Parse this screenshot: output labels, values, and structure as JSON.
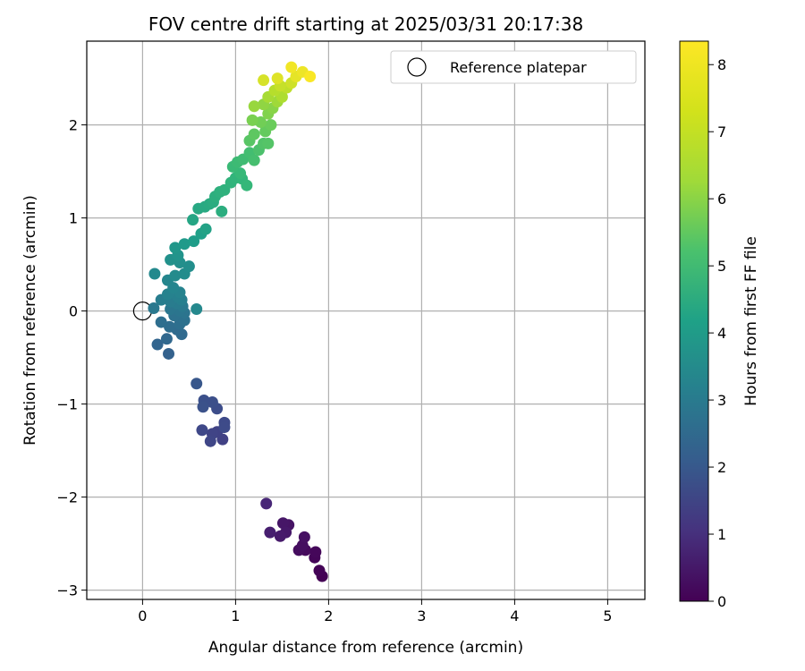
{
  "chart_data": {
    "type": "scatter",
    "title": "FOV centre drift starting at 2025/03/31 20:17:38",
    "xlabel": "Angular distance from reference (arcmin)",
    "ylabel": "Rotation from reference (arcmin)",
    "xlim": [
      -0.6,
      5.4
    ],
    "ylim": [
      -3.1,
      2.9
    ],
    "xticks": [
      0,
      1,
      2,
      3,
      4,
      5
    ],
    "yticks": [
      -3,
      -2,
      -1,
      0,
      1,
      2
    ],
    "xtick_labels": [
      "0",
      "1",
      "2",
      "3",
      "4",
      "5"
    ],
    "ytick_labels": [
      "−3",
      "−2",
      "−1",
      "0",
      "1",
      "2"
    ],
    "grid": true,
    "legend": {
      "placement": "top-right",
      "entries": [
        "Reference platepar"
      ]
    },
    "colormap": "viridis",
    "colorbar": {
      "label": "Hours from first FF file",
      "range": [
        0,
        8.35
      ],
      "ticks": [
        0,
        1,
        2,
        3,
        4,
        5,
        6,
        7,
        8
      ],
      "tick_labels": [
        "0",
        "1",
        "2",
        "3",
        "4",
        "5",
        "6",
        "7",
        "8"
      ]
    },
    "reference_point": {
      "x": 0,
      "y": 0
    },
    "points": [
      {
        "x": 1.93,
        "y": -2.85,
        "h": 0.0
      },
      {
        "x": 1.9,
        "y": -2.79,
        "h": 0.05
      },
      {
        "x": 1.85,
        "y": -2.65,
        "h": 0.1
      },
      {
        "x": 1.86,
        "y": -2.59,
        "h": 0.15
      },
      {
        "x": 1.75,
        "y": -2.57,
        "h": 0.2
      },
      {
        "x": 1.68,
        "y": -2.57,
        "h": 0.25
      },
      {
        "x": 1.72,
        "y": -2.52,
        "h": 0.3
      },
      {
        "x": 1.74,
        "y": -2.43,
        "h": 0.35
      },
      {
        "x": 1.57,
        "y": -2.3,
        "h": 0.45
      },
      {
        "x": 1.51,
        "y": -2.28,
        "h": 0.5
      },
      {
        "x": 1.54,
        "y": -2.38,
        "h": 0.55
      },
      {
        "x": 1.48,
        "y": -2.42,
        "h": 0.6
      },
      {
        "x": 1.37,
        "y": -2.38,
        "h": 0.7
      },
      {
        "x": 1.33,
        "y": -2.07,
        "h": 0.9
      },
      {
        "x": 0.86,
        "y": -1.38,
        "h": 1.6
      },
      {
        "x": 0.8,
        "y": -1.3,
        "h": 1.65
      },
      {
        "x": 0.75,
        "y": -1.32,
        "h": 1.7
      },
      {
        "x": 0.73,
        "y": -1.4,
        "h": 1.75
      },
      {
        "x": 0.64,
        "y": -1.28,
        "h": 1.8
      },
      {
        "x": 0.88,
        "y": -1.2,
        "h": 1.85
      },
      {
        "x": 0.88,
        "y": -1.25,
        "h": 1.88
      },
      {
        "x": 0.8,
        "y": -1.05,
        "h": 1.95
      },
      {
        "x": 0.75,
        "y": -0.98,
        "h": 2.0
      },
      {
        "x": 0.66,
        "y": -0.96,
        "h": 2.05
      },
      {
        "x": 0.65,
        "y": -1.03,
        "h": 2.1
      },
      {
        "x": 0.58,
        "y": -0.78,
        "h": 2.25
      },
      {
        "x": 0.28,
        "y": -0.46,
        "h": 2.6
      },
      {
        "x": 0.16,
        "y": -0.36,
        "h": 2.7
      },
      {
        "x": 0.26,
        "y": -0.3,
        "h": 2.8
      },
      {
        "x": 0.42,
        "y": -0.25,
        "h": 2.85
      },
      {
        "x": 0.37,
        "y": -0.2,
        "h": 2.9
      },
      {
        "x": 0.29,
        "y": -0.17,
        "h": 2.95
      },
      {
        "x": 0.2,
        "y": -0.12,
        "h": 3.0
      },
      {
        "x": 0.4,
        "y": -0.14,
        "h": 3.05
      },
      {
        "x": 0.45,
        "y": -0.1,
        "h": 3.1
      },
      {
        "x": 0.34,
        "y": -0.05,
        "h": 3.15
      },
      {
        "x": 0.45,
        "y": -0.02,
        "h": 3.2
      },
      {
        "x": 0.4,
        "y": 0.0,
        "h": 3.25
      },
      {
        "x": 0.3,
        "y": 0.02,
        "h": 3.3
      },
      {
        "x": 0.12,
        "y": 0.03,
        "h": 3.35
      },
      {
        "x": 0.43,
        "y": 0.05,
        "h": 3.4
      },
      {
        "x": 0.37,
        "y": 0.08,
        "h": 3.45
      },
      {
        "x": 0.3,
        "y": 0.1,
        "h": 3.5
      },
      {
        "x": 0.2,
        "y": 0.12,
        "h": 3.55
      },
      {
        "x": 0.42,
        "y": 0.12,
        "h": 3.6
      },
      {
        "x": 0.38,
        "y": 0.15,
        "h": 3.65
      },
      {
        "x": 0.27,
        "y": 0.18,
        "h": 3.7
      },
      {
        "x": 0.4,
        "y": 0.2,
        "h": 3.75
      },
      {
        "x": 0.33,
        "y": 0.25,
        "h": 3.8
      },
      {
        "x": 0.27,
        "y": 0.33,
        "h": 3.85
      },
      {
        "x": 0.58,
        "y": 0.02,
        "h": 3.9
      },
      {
        "x": 0.13,
        "y": 0.4,
        "h": 3.95
      },
      {
        "x": 0.35,
        "y": 0.38,
        "h": 4.0
      },
      {
        "x": 0.45,
        "y": 0.4,
        "h": 4.05
      },
      {
        "x": 0.5,
        "y": 0.48,
        "h": 4.1
      },
      {
        "x": 0.4,
        "y": 0.52,
        "h": 4.15
      },
      {
        "x": 0.3,
        "y": 0.55,
        "h": 4.2
      },
      {
        "x": 0.38,
        "y": 0.6,
        "h": 4.3
      },
      {
        "x": 0.35,
        "y": 0.68,
        "h": 4.4
      },
      {
        "x": 0.45,
        "y": 0.72,
        "h": 4.5
      },
      {
        "x": 0.55,
        "y": 0.75,
        "h": 4.6
      },
      {
        "x": 0.63,
        "y": 0.83,
        "h": 4.7
      },
      {
        "x": 0.68,
        "y": 0.88,
        "h": 4.8
      },
      {
        "x": 0.54,
        "y": 0.98,
        "h": 4.9
      },
      {
        "x": 0.6,
        "y": 1.1,
        "h": 5.0
      },
      {
        "x": 0.67,
        "y": 1.12,
        "h": 5.05
      },
      {
        "x": 0.72,
        "y": 1.15,
        "h": 5.1
      },
      {
        "x": 0.76,
        "y": 1.17,
        "h": 5.15
      },
      {
        "x": 0.85,
        "y": 1.07,
        "h": 5.2
      },
      {
        "x": 0.78,
        "y": 1.23,
        "h": 5.25
      },
      {
        "x": 0.83,
        "y": 1.28,
        "h": 5.3
      },
      {
        "x": 0.88,
        "y": 1.3,
        "h": 5.35
      },
      {
        "x": 0.95,
        "y": 1.38,
        "h": 5.4
      },
      {
        "x": 1.0,
        "y": 1.43,
        "h": 5.45
      },
      {
        "x": 1.07,
        "y": 1.42,
        "h": 5.5
      },
      {
        "x": 1.12,
        "y": 1.35,
        "h": 5.55
      },
      {
        "x": 1.05,
        "y": 1.48,
        "h": 5.6
      },
      {
        "x": 0.97,
        "y": 1.55,
        "h": 5.65
      },
      {
        "x": 1.02,
        "y": 1.6,
        "h": 5.7
      },
      {
        "x": 1.08,
        "y": 1.63,
        "h": 5.75
      },
      {
        "x": 1.15,
        "y": 1.7,
        "h": 5.8
      },
      {
        "x": 1.2,
        "y": 1.62,
        "h": 5.85
      },
      {
        "x": 1.25,
        "y": 1.73,
        "h": 5.95
      },
      {
        "x": 1.3,
        "y": 1.8,
        "h": 6.05
      },
      {
        "x": 1.35,
        "y": 1.8,
        "h": 6.1
      },
      {
        "x": 1.15,
        "y": 1.83,
        "h": 6.15
      },
      {
        "x": 1.2,
        "y": 1.9,
        "h": 6.25
      },
      {
        "x": 1.32,
        "y": 1.93,
        "h": 6.35
      },
      {
        "x": 1.38,
        "y": 2.0,
        "h": 6.45
      },
      {
        "x": 1.27,
        "y": 2.03,
        "h": 6.55
      },
      {
        "x": 1.18,
        "y": 2.05,
        "h": 6.65
      },
      {
        "x": 1.35,
        "y": 2.12,
        "h": 6.75
      },
      {
        "x": 1.4,
        "y": 2.18,
        "h": 6.85
      },
      {
        "x": 1.3,
        "y": 2.22,
        "h": 6.95
      },
      {
        "x": 1.2,
        "y": 2.2,
        "h": 7.05
      },
      {
        "x": 1.45,
        "y": 2.25,
        "h": 7.15
      },
      {
        "x": 1.35,
        "y": 2.3,
        "h": 7.25
      },
      {
        "x": 1.5,
        "y": 2.3,
        "h": 7.35
      },
      {
        "x": 1.42,
        "y": 2.37,
        "h": 7.45
      },
      {
        "x": 1.55,
        "y": 2.4,
        "h": 7.55
      },
      {
        "x": 1.48,
        "y": 2.42,
        "h": 7.65
      },
      {
        "x": 1.6,
        "y": 2.45,
        "h": 7.75
      },
      {
        "x": 1.3,
        "y": 2.48,
        "h": 7.85
      },
      {
        "x": 1.45,
        "y": 2.5,
        "h": 7.95
      },
      {
        "x": 1.65,
        "y": 2.52,
        "h": 8.05
      },
      {
        "x": 1.72,
        "y": 2.57,
        "h": 8.15
      },
      {
        "x": 1.6,
        "y": 2.62,
        "h": 8.2
      },
      {
        "x": 1.8,
        "y": 2.52,
        "h": 8.3
      }
    ]
  }
}
